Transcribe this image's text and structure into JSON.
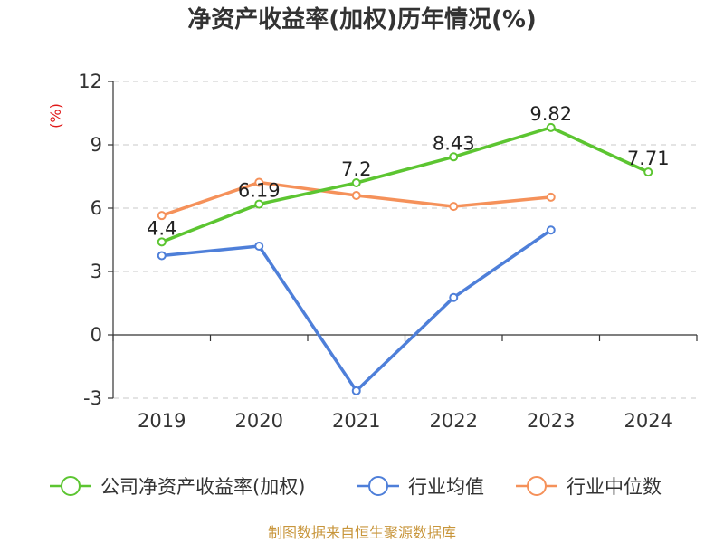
{
  "chart_data": {
    "type": "line",
    "title": "净资产收益率(加权)历年情况(%)",
    "ylabel": "(%)",
    "categories": [
      "2019",
      "2020",
      "2021",
      "2022",
      "2023",
      "2024"
    ],
    "y_ticks": [
      -3,
      0,
      3,
      6,
      9,
      12
    ],
    "ylim": [
      -3,
      12
    ],
    "grid": true,
    "legend_position": "bottom",
    "series": [
      {
        "name": "公司净资产收益率(加权)",
        "color": "#5cc531",
        "values": [
          4.4,
          6.19,
          7.2,
          8.43,
          9.82,
          7.71
        ],
        "labels": [
          "4.4",
          "6.19",
          "7.2",
          "8.43",
          "9.82",
          "7.71"
        ]
      },
      {
        "name": "行业均值",
        "color": "#4e7fd9",
        "values": [
          3.75,
          4.2,
          -2.65,
          1.77,
          4.96,
          null
        ]
      },
      {
        "name": "行业中位数",
        "color": "#f5915a",
        "values": [
          5.65,
          7.22,
          6.6,
          6.08,
          6.52,
          null
        ]
      }
    ],
    "source": "制图数据来自恒生聚源数据库"
  }
}
